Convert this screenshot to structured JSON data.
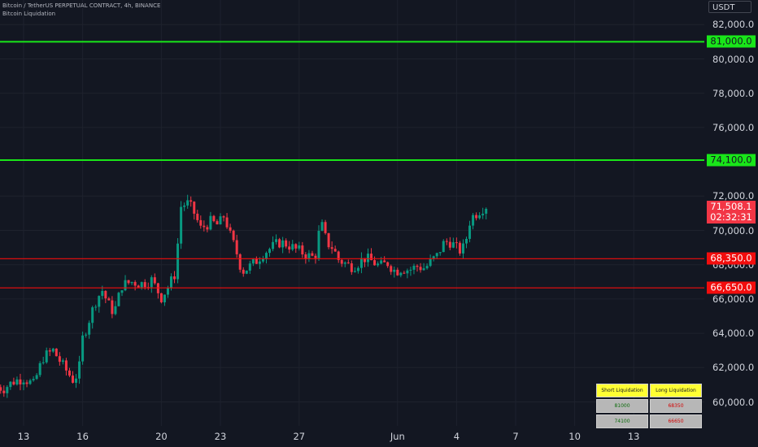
{
  "header": {
    "symbol_line": "Bitcoin / TetherUS PERPETUAL CONTRACT, 4h, BINANCE",
    "indicator_line": "Bitcoin Liquidation"
  },
  "axis": {
    "currency": "USDT"
  },
  "colors": {
    "background": "#131722",
    "up_candle": "#089981",
    "down_candle": "#f23645",
    "short_level": "#19e619",
    "long_level": "#f20d0d",
    "table_header": "#ffff33"
  },
  "chart_data": {
    "type": "candlestick",
    "ylim": [
      59000,
      83000
    ],
    "y_ticks": [
      "82,000.0",
      "80,000.0",
      "78,000.0",
      "76,000.0",
      "72,000.0",
      "70,000.0",
      "68,000.0",
      "66,000.0",
      "64,000.0",
      "62,000.0",
      "60,000.0"
    ],
    "y_tick_values": [
      82000,
      80000,
      78000,
      76000,
      72000,
      70000,
      68000,
      66000,
      64000,
      62000,
      60000
    ],
    "x_ticks": [
      "13",
      "16",
      "20",
      "23",
      "27",
      "Jun",
      "4",
      "7",
      "10",
      "13"
    ],
    "x_tick_days": [
      13,
      16,
      20,
      23,
      27,
      32,
      35,
      38,
      41,
      44
    ],
    "horizontal_levels": [
      {
        "value": 81000,
        "label": "81,000.0",
        "kind": "short"
      },
      {
        "value": 74100,
        "label": "74,100.0",
        "kind": "short"
      },
      {
        "value": 68350,
        "label": "68,350.0",
        "kind": "long"
      },
      {
        "value": 66650,
        "label": "66,650.0",
        "kind": "long"
      }
    ],
    "last_price": {
      "value": 71508.1,
      "label": "71,508.1",
      "countdown": "02:32:31"
    },
    "close_path": [
      [
        11.5,
        60900
      ],
      [
        12.0,
        60800
      ],
      [
        12.5,
        61200
      ],
      [
        13.0,
        61400
      ],
      [
        13.5,
        61000
      ],
      [
        14.0,
        62600
      ],
      [
        14.5,
        63000
      ],
      [
        15.0,
        62100
      ],
      [
        15.5,
        61300
      ],
      [
        15.8,
        61700
      ],
      [
        16.0,
        63700
      ],
      [
        16.3,
        64700
      ],
      [
        16.7,
        66000
      ],
      [
        17.0,
        66500
      ],
      [
        17.3,
        65700
      ],
      [
        17.6,
        65200
      ],
      [
        18.0,
        66800
      ],
      [
        18.5,
        67000
      ],
      [
        19.0,
        66900
      ],
      [
        19.5,
        67100
      ],
      [
        20.0,
        66100
      ],
      [
        20.4,
        66800
      ],
      [
        20.7,
        67500
      ],
      [
        21.0,
        71400
      ],
      [
        21.3,
        71600
      ],
      [
        21.6,
        71200
      ],
      [
        22.0,
        70100
      ],
      [
        22.5,
        70500
      ],
      [
        22.9,
        70300
      ],
      [
        23.2,
        70900
      ],
      [
        23.5,
        69700
      ],
      [
        23.8,
        68800
      ],
      [
        24.1,
        67600
      ],
      [
        24.5,
        67900
      ],
      [
        24.8,
        68200
      ],
      [
        25.2,
        68700
      ],
      [
        25.6,
        69000
      ],
      [
        26.0,
        69300
      ],
      [
        26.4,
        69200
      ],
      [
        26.8,
        68900
      ],
      [
        27.2,
        68700
      ],
      [
        27.5,
        68500
      ],
      [
        27.8,
        68400
      ],
      [
        28.1,
        70500
      ],
      [
        28.4,
        69300
      ],
      [
        28.7,
        69000
      ],
      [
        29.0,
        68300
      ],
      [
        29.3,
        68100
      ],
      [
        29.6,
        67900
      ],
      [
        29.9,
        68000
      ],
      [
        30.3,
        68400
      ],
      [
        30.7,
        68200
      ],
      [
        31.1,
        67900
      ],
      [
        31.5,
        68100
      ],
      [
        31.9,
        67600
      ],
      [
        32.2,
        67800
      ],
      [
        32.6,
        67700
      ],
      [
        33.0,
        67900
      ],
      [
        33.4,
        67800
      ],
      [
        33.7,
        68200
      ],
      [
        34.0,
        68500
      ],
      [
        34.3,
        69200
      ],
      [
        34.6,
        69400
      ],
      [
        34.9,
        69100
      ],
      [
        35.1,
        68800
      ],
      [
        35.4,
        69000
      ],
      [
        35.7,
        70700
      ],
      [
        36.0,
        71000
      ],
      [
        36.3,
        71300
      ],
      [
        36.6,
        71500
      ]
    ]
  },
  "table": {
    "short_header": "Short Liquidation",
    "long_header": "Long Liquidation",
    "rows": [
      {
        "short": "81000",
        "long": "68350"
      },
      {
        "short": "74100",
        "long": "66650"
      }
    ]
  }
}
